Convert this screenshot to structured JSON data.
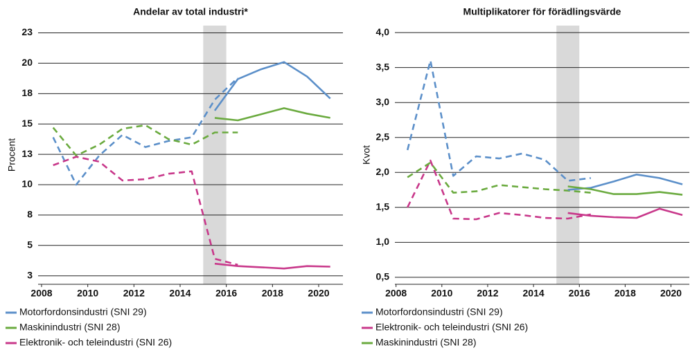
{
  "chart_data": [
    {
      "type": "line",
      "title": "Andelar av total industri*",
      "ylabel": "Procent",
      "x": [
        2008.5,
        2009.5,
        2010.5,
        2011.5,
        2012.5,
        2013.5,
        2014.5,
        2015.5,
        2016.5,
        2017.5,
        2018.5,
        2019.5,
        2020.5
      ],
      "xlim": [
        2007.85,
        2021.05
      ],
      "xticks": [
        2008,
        2010,
        2012,
        2014,
        2016,
        2018,
        2020
      ],
      "ylim": [
        1.8,
        23.1
      ],
      "yticks": [
        {
          "value": 2.5,
          "label": "3"
        },
        5,
        {
          "value": 7.5,
          "label": "8"
        },
        10,
        {
          "value": 12.5,
          "label": "13"
        },
        15,
        {
          "value": 17.5,
          "label": "18"
        },
        20,
        {
          "value": 22.5,
          "label": "23"
        }
      ],
      "grid": true,
      "shade": [
        2015,
        2016
      ],
      "series": [
        {
          "name": "Motorfordonsindustri (SNI 29)",
          "color": "#5b8fc9",
          "dashed_values": [
            13.9,
            10.0,
            12.4,
            14.1,
            13.1,
            13.6,
            13.9,
            17.0,
            18.8,
            null,
            null,
            null,
            null
          ],
          "values": [
            null,
            null,
            null,
            null,
            null,
            null,
            null,
            16.1,
            18.7,
            19.5,
            20.1,
            18.9,
            17.1
          ]
        },
        {
          "name": "Maskinindustri (SNI 28)",
          "color": "#6aaa3e",
          "dashed_values": [
            14.7,
            12.4,
            13.3,
            14.6,
            14.9,
            13.75,
            13.3,
            14.3,
            14.3,
            null,
            null,
            null,
            null
          ],
          "values": [
            null,
            null,
            null,
            null,
            null,
            null,
            null,
            15.5,
            15.3,
            15.8,
            16.3,
            15.85,
            15.5
          ]
        },
        {
          "name": "Elektronik- och teleindustri (SNI 26)",
          "color": "#c8378a",
          "dashed_values": [
            11.6,
            12.3,
            11.9,
            10.35,
            10.45,
            10.9,
            11.1,
            3.9,
            3.4,
            null,
            null,
            null,
            null
          ],
          "values": [
            null,
            null,
            null,
            null,
            null,
            null,
            null,
            3.5,
            3.3,
            3.2,
            3.1,
            3.3,
            3.25
          ]
        }
      ]
    },
    {
      "type": "line",
      "title": "Multiplikatorer för förädlingsvärde",
      "ylabel": "Kvot",
      "x": [
        2008.5,
        2009.5,
        2010.5,
        2011.5,
        2012.5,
        2013.5,
        2014.5,
        2015.5,
        2016.5,
        2017.5,
        2018.5,
        2019.5,
        2020.5
      ],
      "xlim": [
        2007.95,
        2020.8
      ],
      "xticks": [
        2008,
        2010,
        2012,
        2014,
        2016,
        2018,
        2020
      ],
      "ylim": [
        0.4,
        4.1
      ],
      "yticks": [
        {
          "value": 0.5,
          "label": "0,5"
        },
        {
          "value": 1.0,
          "label": "1,0"
        },
        {
          "value": 1.5,
          "label": "1,5"
        },
        {
          "value": 2.0,
          "label": "2,0"
        },
        {
          "value": 2.5,
          "label": "2,5"
        },
        {
          "value": 3.0,
          "label": "3,0"
        },
        {
          "value": 3.5,
          "label": "3,5"
        },
        {
          "value": 4.0,
          "label": "4,0"
        }
      ],
      "grid": true,
      "shade": [
        2015,
        2016
      ],
      "series": [
        {
          "name": "Motorfordonsindustri (SNI 29)",
          "color": "#5b8fc9",
          "dashed_values": [
            2.32,
            3.6,
            1.95,
            2.23,
            2.2,
            2.27,
            2.18,
            1.88,
            1.92,
            null,
            null,
            null,
            null
          ],
          "values": [
            null,
            null,
            null,
            null,
            null,
            null,
            null,
            1.75,
            1.78,
            1.87,
            1.97,
            1.92,
            1.83
          ]
        },
        {
          "name": "Elektronik- och teleindustri (SNI 26)",
          "color": "#c8378a",
          "dashed_values": [
            1.5,
            2.17,
            1.34,
            1.33,
            1.42,
            1.39,
            1.35,
            1.34,
            1.4,
            null,
            null,
            null,
            null
          ],
          "values": [
            null,
            null,
            null,
            null,
            null,
            null,
            null,
            1.42,
            1.38,
            1.36,
            1.35,
            1.48,
            1.39
          ]
        },
        {
          "name": "Maskinindustri (SNI 28)",
          "color": "#6aaa3e",
          "dashed_values": [
            1.93,
            2.14,
            1.71,
            1.73,
            1.82,
            1.79,
            1.76,
            1.74,
            1.71,
            null,
            null,
            null,
            null
          ],
          "values": [
            null,
            null,
            null,
            null,
            null,
            null,
            null,
            1.8,
            1.76,
            1.69,
            1.69,
            1.72,
            1.68
          ]
        }
      ]
    }
  ]
}
